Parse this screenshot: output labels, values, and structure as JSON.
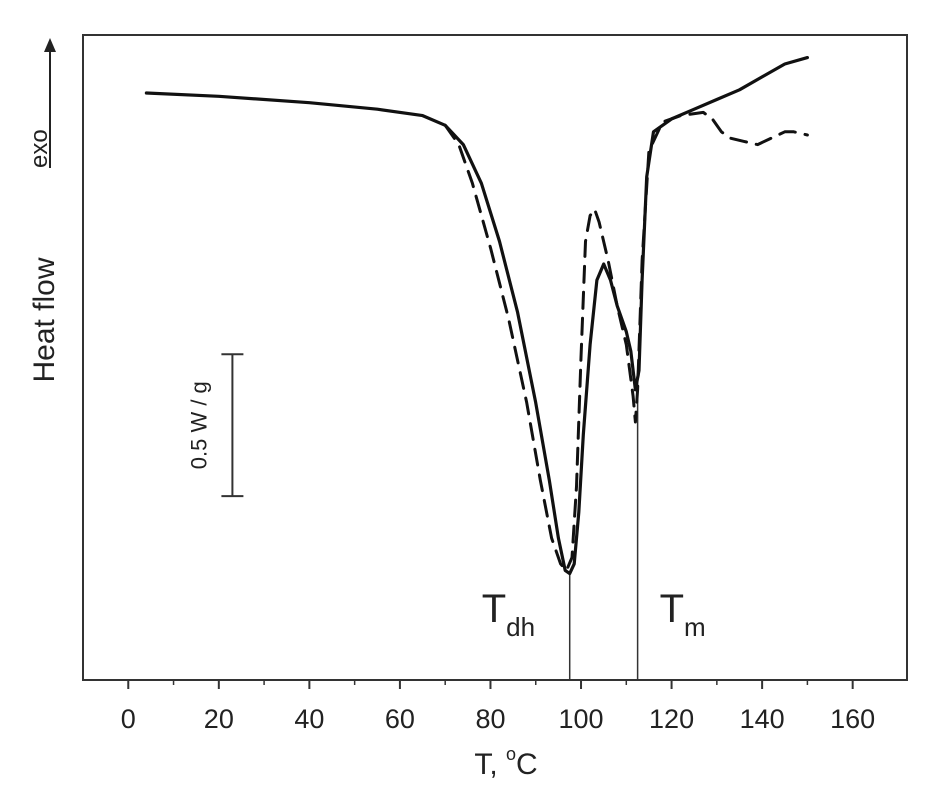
{
  "chart_data": {
    "type": "line",
    "xlabel": "T, °C",
    "xlabel_parts": {
      "base": "T, ",
      "degree": "o",
      "unit": "C"
    },
    "ylabel": "Heat flow",
    "exo_label": "exo",
    "xlim": [
      -10,
      172
    ],
    "ylim": [
      0,
      100
    ],
    "xticks": [
      0,
      20,
      40,
      60,
      80,
      100,
      120,
      140,
      160
    ],
    "y_units": "arbitrary (exo up)",
    "grid": false,
    "scale_bar": {
      "label": "0.5 W / g",
      "y_from": 50.5,
      "y_to": 28.5,
      "x": 23
    },
    "annotations": [
      {
        "base": "T",
        "sub": "dh",
        "x": 97.5
      },
      {
        "base": "T",
        "sub": "m",
        "x": 112.5
      }
    ],
    "series": [
      {
        "style": "solid",
        "points": [
          [
            4,
            91
          ],
          [
            20,
            90.5
          ],
          [
            40,
            89.5
          ],
          [
            55,
            88.5
          ],
          [
            65,
            87.5
          ],
          [
            70,
            86
          ],
          [
            74,
            83
          ],
          [
            78,
            77
          ],
          [
            82,
            68
          ],
          [
            86,
            57
          ],
          [
            90,
            43
          ],
          [
            93,
            31
          ],
          [
            95,
            22
          ],
          [
            96.5,
            17
          ],
          [
            97.5,
            16.5
          ],
          [
            98.5,
            18
          ],
          [
            99.5,
            26
          ],
          [
            100.5,
            38
          ],
          [
            102,
            52
          ],
          [
            103.5,
            62
          ],
          [
            105,
            64.5
          ],
          [
            106.5,
            62
          ],
          [
            108,
            58
          ],
          [
            110,
            54
          ],
          [
            111,
            51
          ],
          [
            112,
            45
          ],
          [
            112.8,
            48
          ],
          [
            113.5,
            62
          ],
          [
            114.5,
            78
          ],
          [
            116,
            85
          ],
          [
            120,
            87
          ],
          [
            125,
            88.5
          ],
          [
            130,
            90
          ],
          [
            135,
            91.5
          ],
          [
            140,
            93.5
          ],
          [
            145,
            95.5
          ],
          [
            150,
            96.5
          ]
        ]
      },
      {
        "style": "dashed",
        "points": [
          [
            70,
            86
          ],
          [
            73,
            83
          ],
          [
            76,
            77
          ],
          [
            80,
            67
          ],
          [
            84,
            56
          ],
          [
            88,
            43
          ],
          [
            91,
            31
          ],
          [
            93.5,
            22
          ],
          [
            95.5,
            18
          ],
          [
            96.8,
            17
          ],
          [
            98,
            19
          ],
          [
            99,
            30
          ],
          [
            100,
            50
          ],
          [
            101,
            68
          ],
          [
            102,
            72
          ],
          [
            103,
            73
          ],
          [
            104,
            71
          ],
          [
            106,
            65
          ],
          [
            108,
            58
          ],
          [
            110,
            52
          ],
          [
            111.5,
            44
          ],
          [
            112,
            40
          ],
          [
            112.5,
            45
          ],
          [
            113.5,
            65
          ],
          [
            115,
            82
          ],
          [
            118,
            86.5
          ],
          [
            122,
            87.5
          ],
          [
            127,
            88
          ],
          [
            129,
            87
          ],
          [
            131,
            85
          ],
          [
            133,
            84
          ],
          [
            136,
            83.5
          ],
          [
            139,
            83
          ],
          [
            142,
            84
          ],
          [
            145,
            85
          ],
          [
            147,
            85
          ],
          [
            150,
            84.5
          ]
        ]
      }
    ]
  }
}
